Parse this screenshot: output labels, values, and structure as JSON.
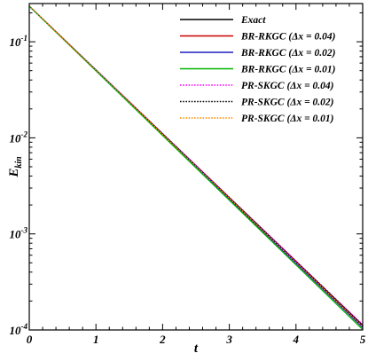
{
  "chart_data": {
    "type": "line",
    "title": "",
    "xlabel": "t",
    "ylabel_main": "E",
    "ylabel_sub": "kin",
    "xlim": [
      0,
      5
    ],
    "ylim": [
      0.0001,
      0.25
    ],
    "yscale": "log",
    "grid": false,
    "legend_position": "top-right",
    "x_ticks": [
      {
        "value": 0,
        "label": "0"
      },
      {
        "value": 1,
        "label": "1"
      },
      {
        "value": 2,
        "label": "2"
      },
      {
        "value": 3,
        "label": "3"
      },
      {
        "value": 4,
        "label": "4"
      },
      {
        "value": 5,
        "label": "5"
      }
    ],
    "y_ticks": [
      {
        "value": 0.1,
        "base": "10",
        "exp": "-1"
      },
      {
        "value": 0.01,
        "base": "10",
        "exp": "-2"
      },
      {
        "value": 0.001,
        "base": "10",
        "exp": "-3"
      },
      {
        "value": 0.0001,
        "base": "10",
        "exp": "-4"
      }
    ],
    "series": [
      {
        "name": "Exact",
        "color": "#000000",
        "dash": "solid",
        "x": [
          0,
          5
        ],
        "y": [
          0.235,
          0.000112
        ]
      },
      {
        "name": "BR-RKGC (Δx = 0.04)",
        "color": "#cc0000",
        "dash": "solid",
        "x": [
          0,
          5
        ],
        "y": [
          0.235,
          0.000108
        ]
      },
      {
        "name": "BR-RKGC (Δx = 0.02)",
        "color": "#1f1fbf",
        "dash": "solid",
        "x": [
          0,
          5
        ],
        "y": [
          0.235,
          0.000106
        ]
      },
      {
        "name": "BR-RKGC (Δx = 0.01)",
        "color": "#00b400",
        "dash": "solid",
        "x": [
          0,
          5
        ],
        "y": [
          0.235,
          0.000101
        ]
      },
      {
        "name": "PR-SKGC (Δx = 0.04)",
        "color": "#ff00ff",
        "dash": "dotted",
        "x": [
          0,
          5
        ],
        "y": [
          0.235,
          0.000114
        ]
      },
      {
        "name": "PR-SKGC (Δx = 0.02)",
        "color": "#000000",
        "dash": "dotted",
        "x": [
          0,
          5
        ],
        "y": [
          0.235,
          0.000111
        ]
      },
      {
        "name": "PR-SKGC (Δx = 0.01)",
        "color": "#ff8c00",
        "dash": "dotted",
        "x": [
          0,
          5
        ],
        "y": [
          0.235,
          0.000109
        ]
      }
    ]
  }
}
